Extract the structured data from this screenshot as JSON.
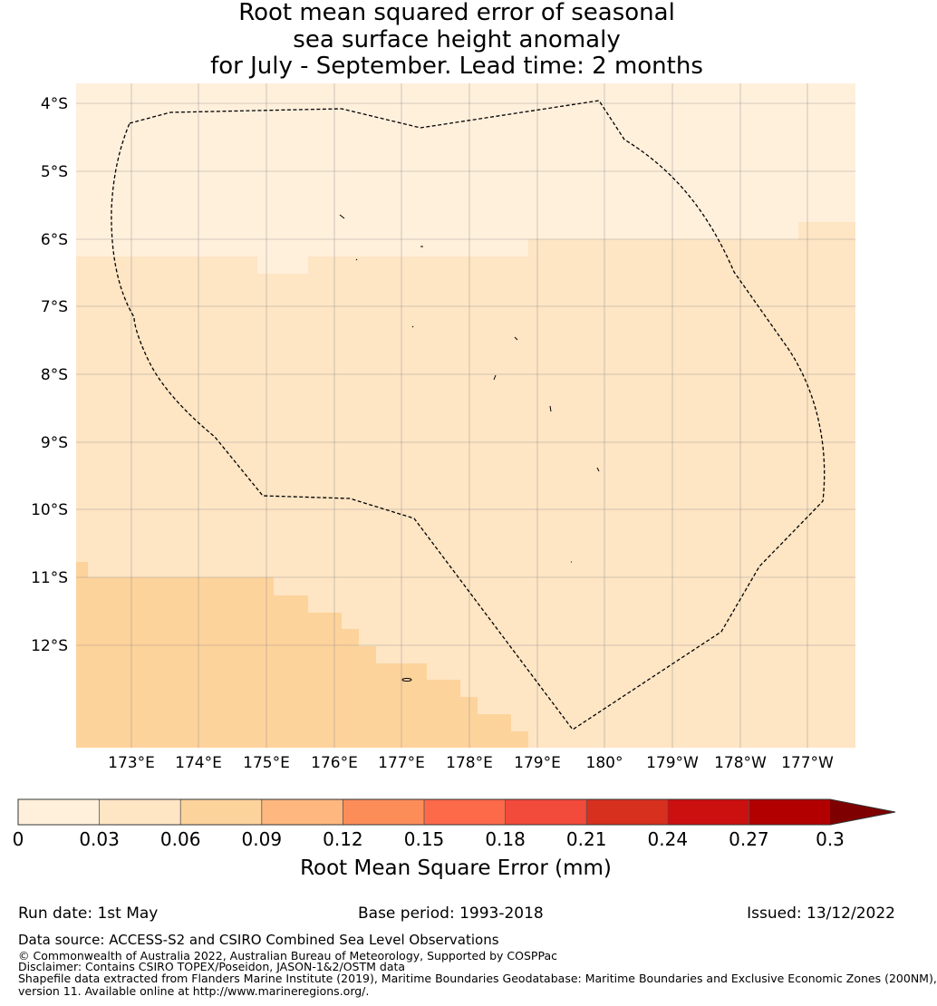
{
  "title": {
    "line1": "Root mean squared error of seasonal",
    "line2": "sea surface height anomaly",
    "line3": "for July - September. Lead time: 2 months"
  },
  "map": {
    "lat_labels": [
      "4°S",
      "5°S",
      "6°S",
      "7°S",
      "8°S",
      "9°S",
      "10°S",
      "11°S",
      "12°S"
    ],
    "lon_labels": [
      "173°E",
      "174°E",
      "175°E",
      "176°E",
      "177°E",
      "178°E",
      "179°E",
      "180°",
      "179°W",
      "178°W",
      "177°W"
    ],
    "colors": {
      "band1": "#fff0dc",
      "band2": "#fee5c4",
      "band3": "#fdd39c",
      "boundary": "#000000",
      "grid": "#888888"
    }
  },
  "colorbar": {
    "ticks": [
      "0",
      "0.03",
      "0.06",
      "0.09",
      "0.12",
      "0.15",
      "0.18",
      "0.21",
      "0.24",
      "0.27",
      "0.3"
    ],
    "colors": [
      "#fff0dc",
      "#fee5c4",
      "#fdd39c",
      "#fdb77f",
      "#fc8d59",
      "#fc6a4a",
      "#f24a3b",
      "#d7301f",
      "#cc0f0f",
      "#b20000",
      "#7f0000"
    ],
    "label": "Root Mean Square Error (mm)"
  },
  "footer": {
    "run_date": "Run date: 1st May",
    "base_period": "Base period: 1993-2018",
    "issued": "Issued: 13/12/2022",
    "data_source": "Data source: ACCESS-S2 and CSIRO Combined Sea Level Observations",
    "copyright": "© Commonwealth of Australia 2022, Australian Bureau of Meteorology, Supported by COSPPac",
    "disclaimer": "Disclaimer: Contains CSIRO TOPEX/Poseidon, JASON-1&2/OSTM data",
    "shapefile1": "Shapefile data extracted from Flanders Marine Institute (2019), Maritime Boundaries Geodatabase: Maritime Boundaries and Exclusive Economic Zones (200NM),",
    "shapefile2": "version 11. Available online at http://www.marineregions.org/."
  }
}
